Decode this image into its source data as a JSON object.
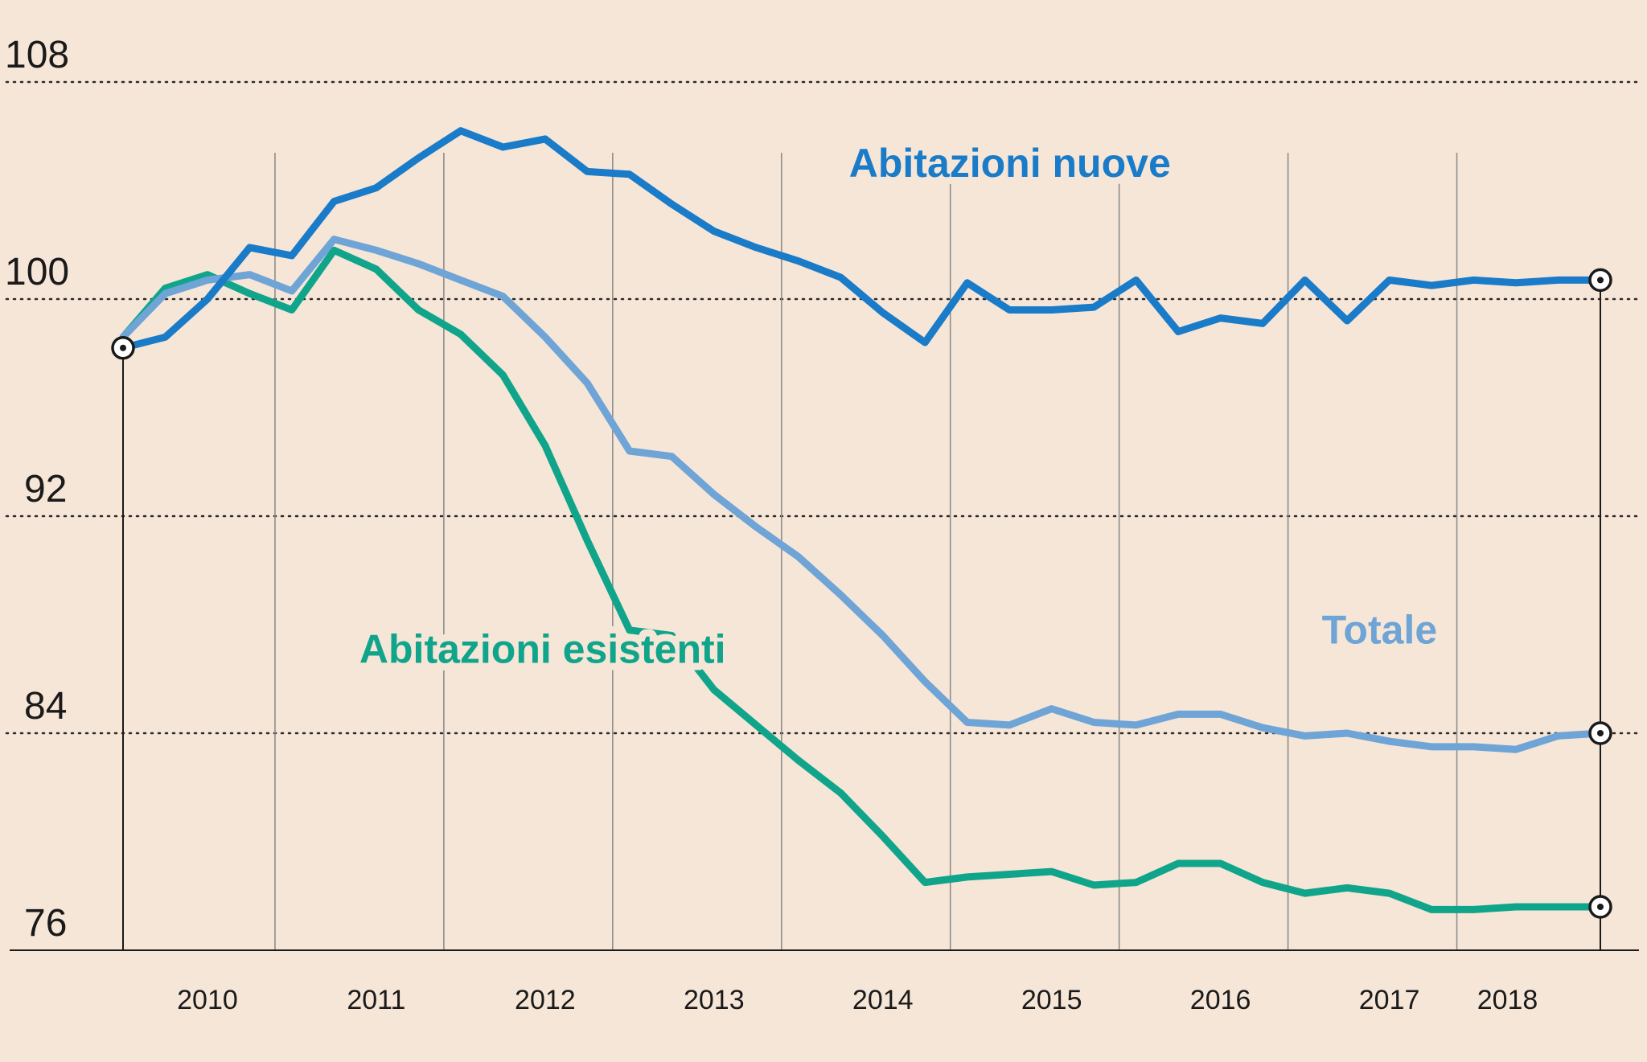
{
  "chart_data": {
    "type": "line",
    "title": "",
    "xlabel": "",
    "ylabel": "",
    "ylim": [
      76,
      108
    ],
    "yticks": [
      76,
      84,
      92,
      100,
      108
    ],
    "xlim": [
      2009.5,
      2018.25
    ],
    "xticks": [
      {
        "label": "2010",
        "pos": 2010.0
      },
      {
        "label": "2011",
        "pos": 2011.0
      },
      {
        "label": "2012",
        "pos": 2012.0
      },
      {
        "label": "2013",
        "pos": 2013.0
      },
      {
        "label": "2014",
        "pos": 2014.0
      },
      {
        "label": "2015",
        "pos": 2015.0
      },
      {
        "label": "2016",
        "pos": 2016.0
      },
      {
        "label": "2017",
        "pos": 2017.0
      },
      {
        "label": "2018",
        "pos": 2017.7
      }
    ],
    "year_separators": [
      2010.4,
      2011.4,
      2012.4,
      2013.4,
      2014.4,
      2015.4,
      2016.4,
      2017.4
    ],
    "x": [
      2009.5,
      2009.75,
      2010.0,
      2010.25,
      2010.5,
      2010.75,
      2011.0,
      2011.25,
      2011.5,
      2011.75,
      2012.0,
      2012.25,
      2012.5,
      2012.75,
      2013.0,
      2013.25,
      2013.5,
      2013.75,
      2014.0,
      2014.25,
      2014.5,
      2014.75,
      2015.0,
      2015.25,
      2015.5,
      2015.75,
      2016.0,
      2016.25,
      2016.5,
      2016.75,
      2017.0,
      2017.25,
      2017.5,
      2017.75,
      2018.0,
      2018.25
    ],
    "series": [
      {
        "name": "Abitazioni nuove",
        "color": "#1a7bc8",
        "label_pos": [
          2013.8,
          104.5
        ],
        "end_marker": true,
        "values": [
          98.2,
          98.6,
          100.0,
          101.9,
          101.6,
          103.6,
          104.1,
          105.2,
          106.2,
          105.6,
          105.9,
          104.7,
          104.6,
          103.5,
          102.5,
          101.9,
          101.4,
          100.8,
          99.5,
          98.4,
          100.6,
          99.6,
          99.6,
          99.7,
          100.7,
          98.8,
          99.3,
          99.1,
          100.7,
          99.2,
          100.7,
          100.5,
          100.7,
          100.6,
          100.7,
          100.7
        ]
      },
      {
        "name": "Totale",
        "color": "#6fa4d6",
        "label_pos": [
          2016.6,
          87.3
        ],
        "end_marker": true,
        "values": [
          98.6,
          100.2,
          100.7,
          100.9,
          100.3,
          102.2,
          101.8,
          101.3,
          100.7,
          100.1,
          98.6,
          96.9,
          94.4,
          94.2,
          92.8,
          91.6,
          90.5,
          89.1,
          87.6,
          85.9,
          84.4,
          84.3,
          84.9,
          84.4,
          84.3,
          84.7,
          84.7,
          84.2,
          83.9,
          84.0,
          83.7,
          83.5,
          83.5,
          83.4,
          83.9,
          84.0
        ]
      },
      {
        "name": "Abitazioni esistenti",
        "color": "#10a58a",
        "label_pos": [
          2010.9,
          86.6
        ],
        "end_marker": true,
        "values": [
          98.6,
          100.4,
          100.9,
          100.2,
          99.6,
          101.8,
          101.1,
          99.6,
          98.7,
          97.2,
          94.6,
          91.1,
          87.8,
          87.6,
          85.6,
          84.3,
          83.0,
          81.8,
          80.2,
          78.5,
          78.7,
          78.8,
          78.9,
          78.4,
          78.5,
          79.2,
          79.2,
          78.5,
          78.1,
          78.3,
          78.1,
          77.5,
          77.5,
          77.6,
          77.6,
          77.6
        ]
      }
    ]
  }
}
